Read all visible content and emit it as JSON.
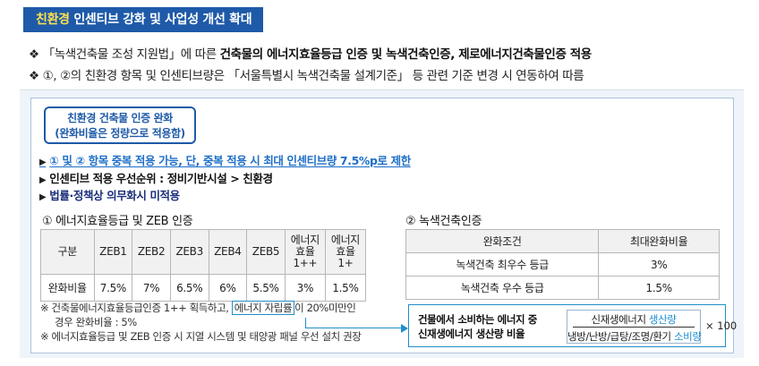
{
  "title": {
    "highlight": "친환경",
    "rest": " 인센티브 강화 및 사업성 개선 확대"
  },
  "bullets": {
    "marker": "❖",
    "line1_normal": "「녹색건축물 조성 지원법」에 따른 ",
    "line1_bold": "건축물의 에너지효율등급 인증 및 녹색건축인증, 제로에너지건축물인증 적용",
    "line2": "①, ②의 친환경 항목 및 인센티브량은 「서울특별시 녹색건축물 설계기준」 등 관련 기준 변경 시 연동하여 따름"
  },
  "cert_box": {
    "line1": "친환경 건축물 인증 완화",
    "line2": "(완화비율은 정량으로 적용함)"
  },
  "triangle_marker": "▶",
  "triangle_items": [
    "① 및 ② 항목 중복 적용 가능, 단, 중복 적용 시 최대 인센티브량 7.5%p로 제한",
    "인센티브 적용 우선순위 : 정비기반시설 > 친환경",
    "법률·정책상 의무화시 미적용"
  ],
  "section1": {
    "heading": "① 에너지효율등급 및 ZEB 인증",
    "headers": [
      "구분",
      "ZEB1",
      "ZEB2",
      "ZEB3",
      "ZEB4",
      "ZEB5",
      "에너지|효율|1++",
      "에너지|효율|1+"
    ],
    "row": [
      "완화비율",
      "7.5%",
      "7%",
      "6.5%",
      "6%",
      "5.5%",
      "3%",
      "1.5%"
    ]
  },
  "section2": {
    "heading": "② 녹색건축인증",
    "headers": [
      "완화조건",
      "최대완화비율"
    ],
    "rows": [
      [
        "녹색건축 최우수 등급",
        "3%"
      ],
      [
        "녹색건축 우수 등급",
        "1.5%"
      ]
    ]
  },
  "notes": {
    "mark": "※",
    "note1_pre": " 건축물에너지효율등급인증 1++ 획득하고, ",
    "note1_boxed": "에너지 자립률",
    "note1_post": "이 20%미만인",
    "note1_cont": "경우 완화비율 : 5%",
    "note2": " 에너지효율등급 및 ZEB 인증 시 지열 시스템 및 태양광 패널 우선 설치 권장"
  },
  "ratio": {
    "desc_line1": "건물에서 소비하는 에너지 중",
    "desc_line2": "신재생에너지 생산량 비율",
    "num_pre": "신재생에너지 ",
    "num_hl": "생산량",
    "den_pre": "냉방/난방/급탕/조명/환기 ",
    "den_hl": "소비량",
    "times": "× 100"
  },
  "colors": {
    "banner": "#1e5aa8",
    "banner_highlight": "#ffe14d",
    "link_blue": "#1e6fc8",
    "box_cyan": "#1f8ec9",
    "panel_bg": "#eef4fa"
  }
}
